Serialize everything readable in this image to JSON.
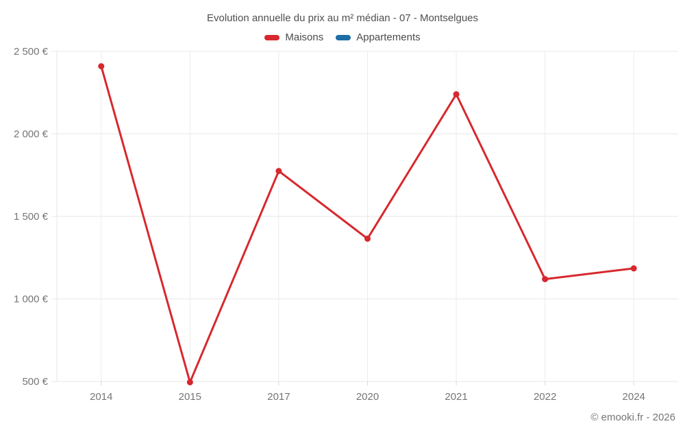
{
  "chart": {
    "title": "Evolution annuelle du prix au m² médian - 07 - Montselgues"
  },
  "chart_data": {
    "type": "line",
    "title": "Evolution annuelle du prix au m² médian - 07 - Montselgues",
    "categories": [
      "2014",
      "2015",
      "2017",
      "2020",
      "2021",
      "2022",
      "2024"
    ],
    "series": [
      {
        "name": "Maisons",
        "color": "#d7282d",
        "values": [
          2410,
          495,
          1775,
          1365,
          2240,
          1120,
          1185
        ]
      },
      {
        "name": "Appartements",
        "color": "#1c6ea4",
        "values": []
      }
    ],
    "yticks": [
      {
        "value": 2500,
        "label": "2 500 €"
      },
      {
        "value": 2000,
        "label": "2 000 €"
      },
      {
        "value": 1500,
        "label": "1 500 €"
      },
      {
        "value": 1000,
        "label": "1 000 €"
      },
      {
        "value": 500,
        "label": "500 €"
      }
    ],
    "ylim": [
      500,
      2500
    ],
    "unit": "€",
    "grid": true,
    "legend_position": "top",
    "marker": "circle"
  },
  "footer": {
    "copyright": "© emooki.fr - 2026"
  }
}
